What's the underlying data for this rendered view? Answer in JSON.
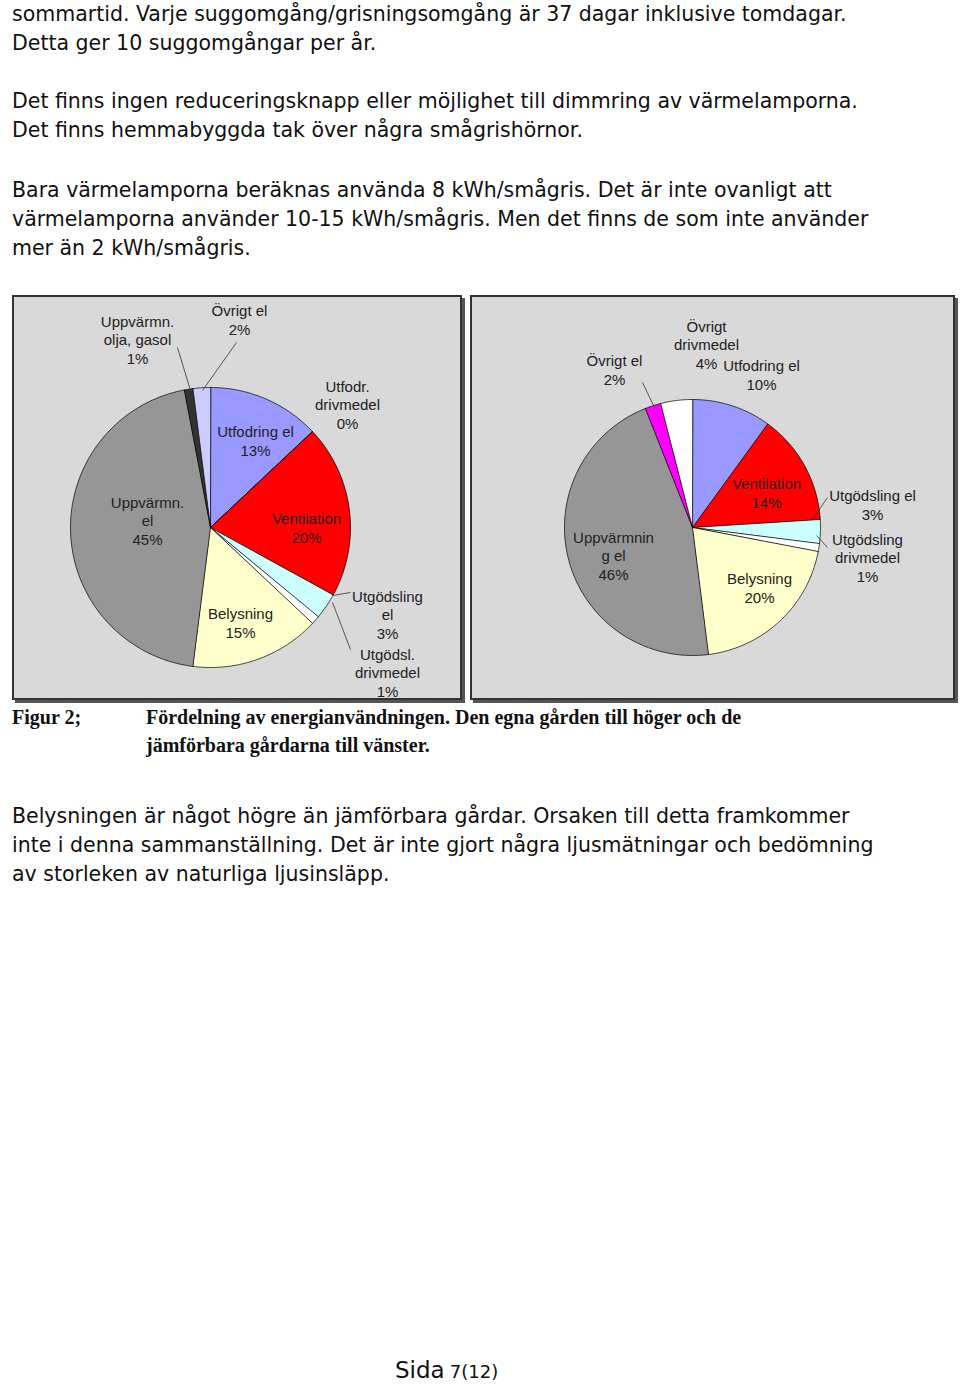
{
  "paragraphs_before": [
    [
      "sommartid. Varje suggomgång/grisningsomgång är 37 dagar inklusive tomdagar.",
      "Detta ger 10 suggomgångar per år."
    ],
    [
      "Det finns ingen reduceringsknapp eller möjlighet till dimmring av värmelamporna.",
      "Det finns hemmabyggda tak över några smågrishörnor."
    ],
    [
      "Bara värmelamporna beräknas använda 8 kWh/smågris. Det är inte ovanligt att",
      "värmelamporna använder 10-15 kWh/smågris. Men det finns de som inte använder",
      "mer än 2 kWh/smågris."
    ]
  ],
  "chart_data": [
    {
      "type": "pie",
      "categories": [
        "Utfodring el",
        "Utfodr.\ndrivmedel",
        "Ventilation",
        "Utgödsling\nel",
        "Utgödsl.\ndrivmedel",
        "Belysning",
        "Uppvärmn.\nel",
        "Uppvärmn.\nolja, gasol",
        "Övrigt el"
      ],
      "values": [
        13,
        0,
        20,
        3,
        1,
        15,
        45,
        1,
        2
      ],
      "value_labels": [
        "13%",
        "0%",
        "20%",
        "3%",
        "1%",
        "15%",
        "45%",
        "1%",
        "2%"
      ],
      "colors": [
        "#9999ff",
        "#993366",
        "#ff0000",
        "#ccffff",
        "#ffffff",
        "#ffffcc",
        "#969696",
        "#333333",
        "#ccccff"
      ],
      "data_labels": true
    },
    {
      "type": "pie",
      "categories": [
        "Utfodring el",
        "Ventilation",
        "Utgödsling el",
        "Utgödsling\ndrivmedel",
        "Belysning",
        "Uppvärmnin\ng el",
        "Övrigt el",
        "Övrigt\ndrivmedel"
      ],
      "values": [
        10,
        14,
        3,
        1,
        20,
        46,
        2,
        4
      ],
      "value_labels": [
        "10%",
        "14%",
        "3%",
        "1%",
        "20%",
        "46%",
        "2%",
        "4%"
      ],
      "colors": [
        "#9999ff",
        "#ff0000",
        "#ccffff",
        "#ffffff",
        "#ffffcc",
        "#969696",
        "#ff00ff",
        "#ffffff"
      ],
      "data_labels": true
    }
  ],
  "caption": {
    "label": "Figur 2;",
    "lines": [
      "Fördelning av energianvändningen. Den egna gården till höger och de",
      "jämförbara gårdarna till vänster."
    ]
  },
  "paragraphs_after": [
    [
      "Belysningen är något högre än jämförbara gårdar. Orsaken till detta framkommer",
      "inte i denna sammanställning. Det är inte gjort några ljusmätningar och bedömning",
      "av storleken av naturliga ljusinsläpp."
    ]
  ],
  "footer": {
    "label": "Sida",
    "number": "7(12)"
  }
}
